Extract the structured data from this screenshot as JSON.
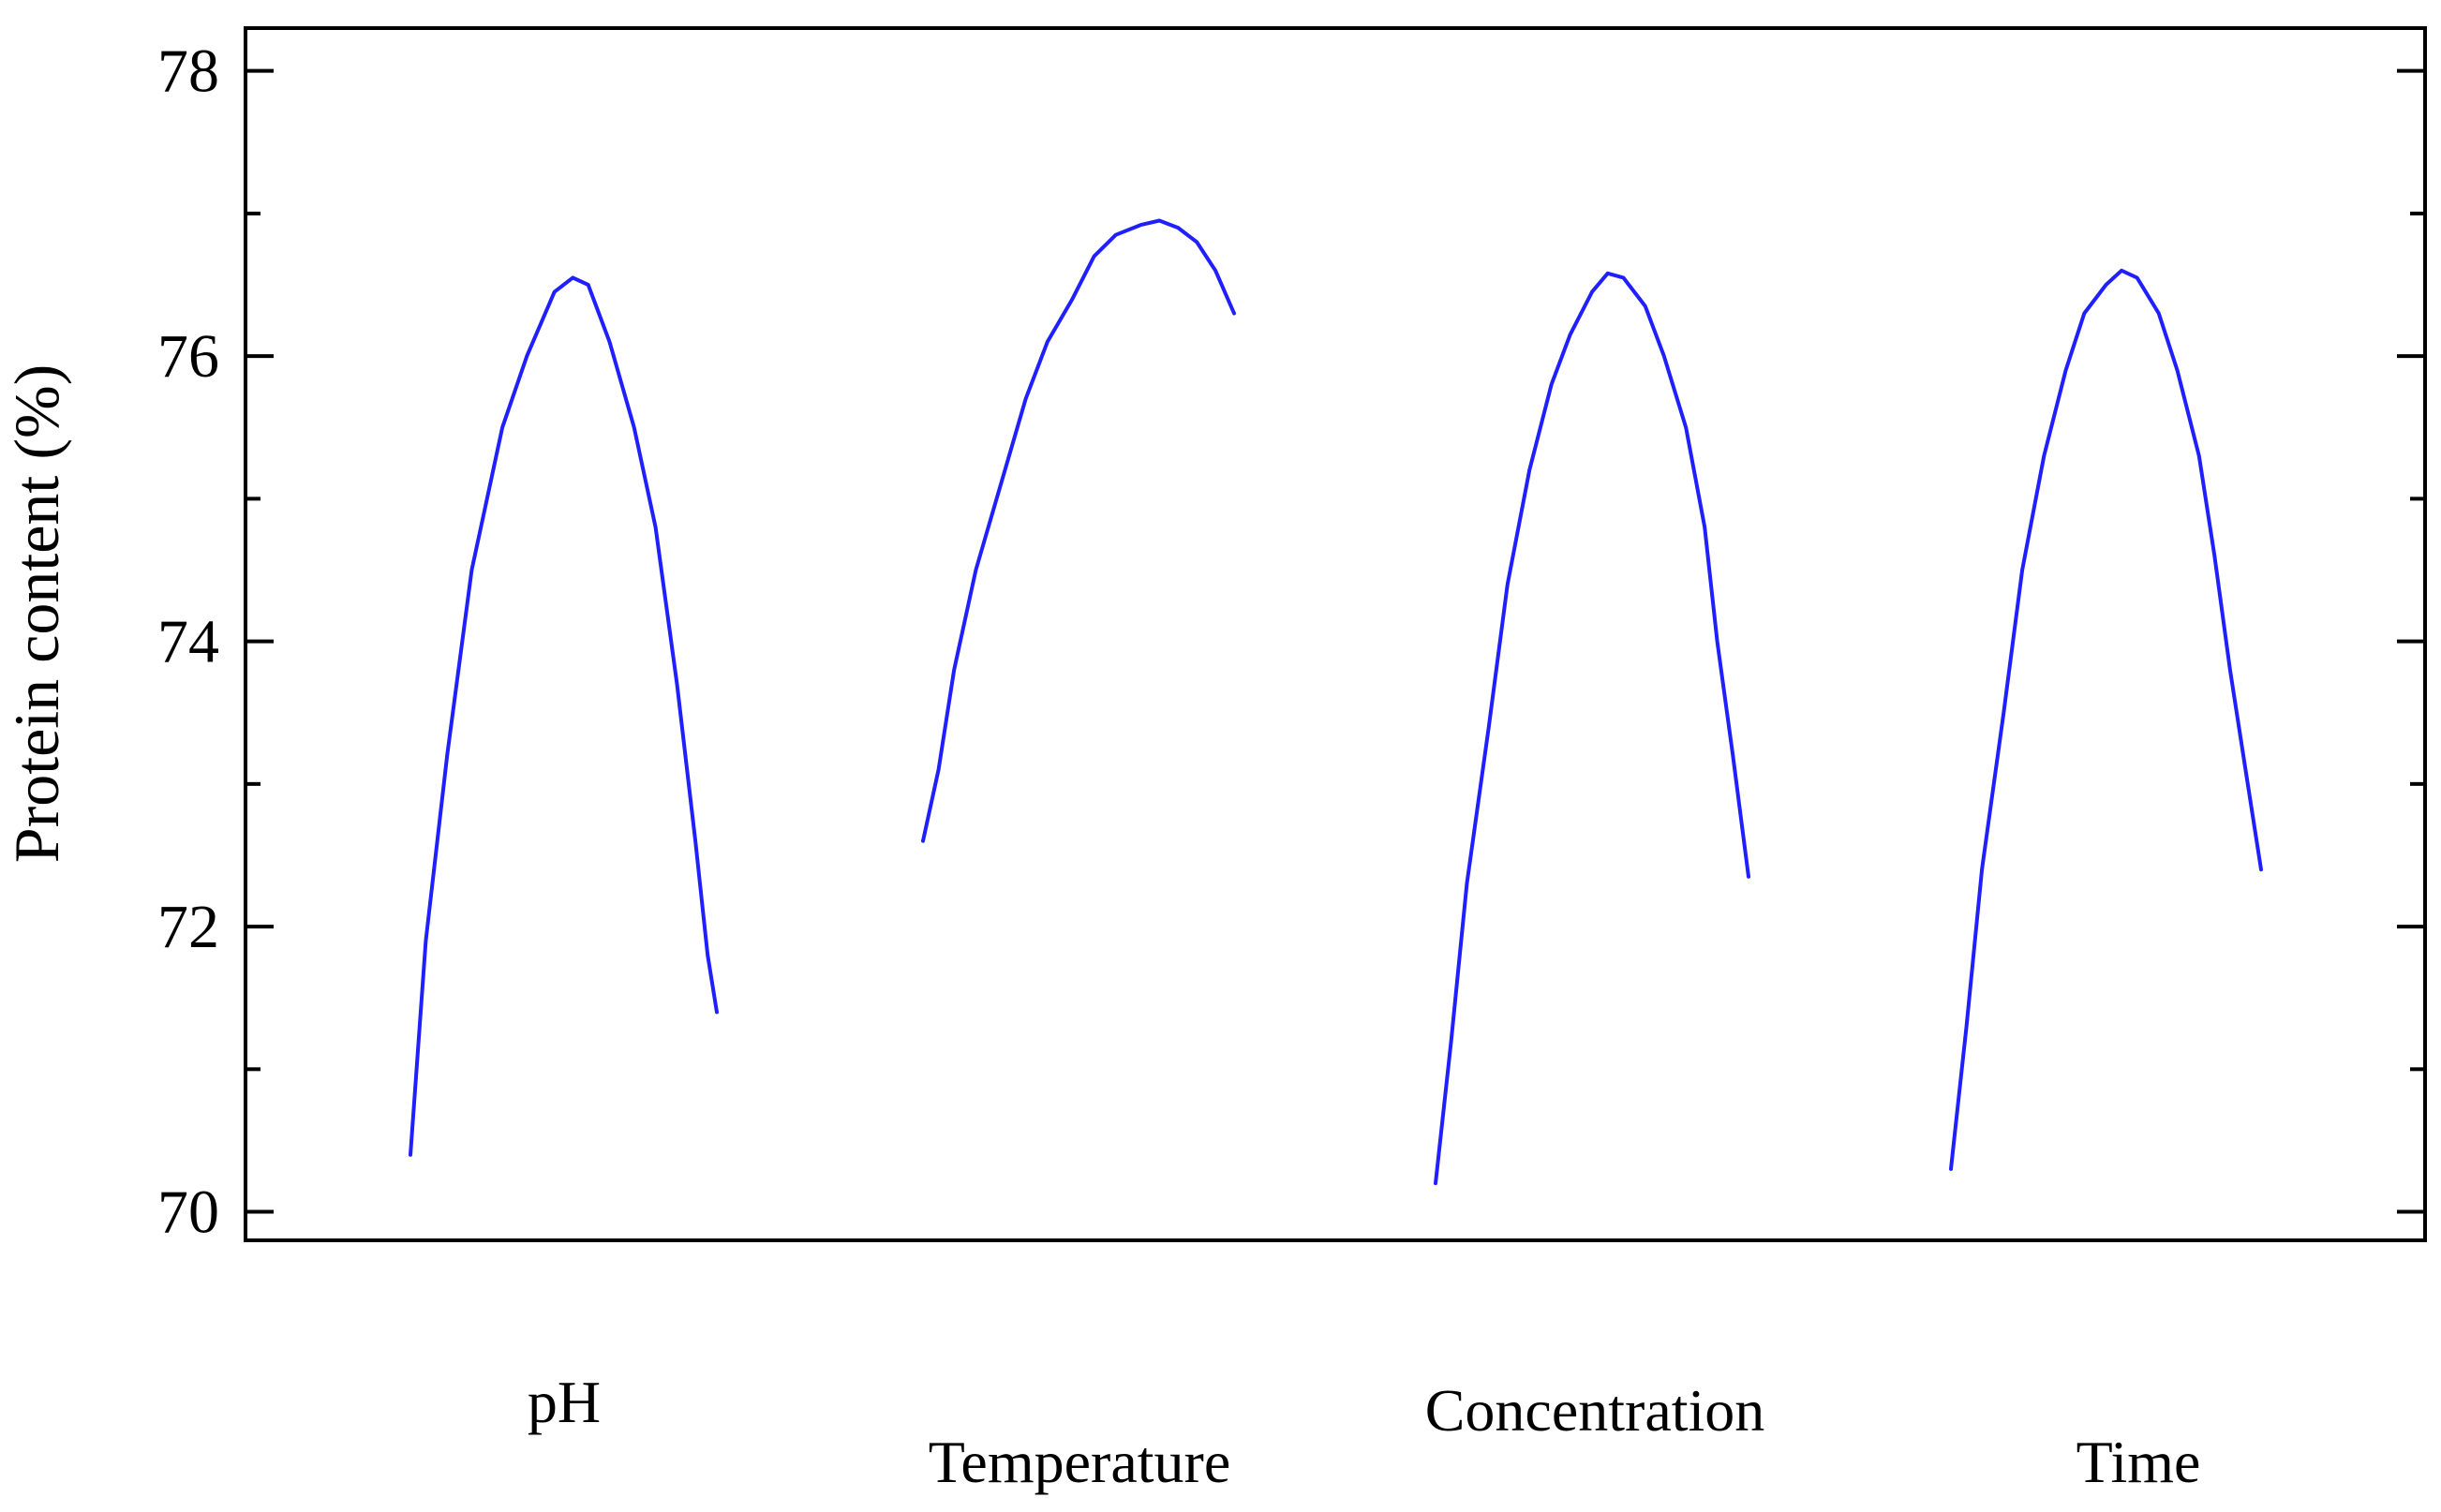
{
  "chart_data": {
    "type": "line",
    "title": "",
    "ylabel": "Protein content (%)",
    "xlabel": "",
    "ylim": [
      69.8,
      78.3
    ],
    "yticks_major": [
      70,
      72,
      74,
      76,
      78
    ],
    "yticks_labels": [
      "70",
      "72",
      "74",
      "76",
      "78"
    ],
    "yticks_minor": [
      71,
      73,
      75,
      77
    ],
    "grid": false,
    "line_color": "#1f1fff",
    "factors": [
      {
        "label": "pH",
        "points": [
          [
            0.0,
            70.4
          ],
          [
            0.05,
            71.9
          ],
          [
            0.12,
            73.2
          ],
          [
            0.2,
            74.5
          ],
          [
            0.3,
            75.5
          ],
          [
            0.38,
            76.0
          ],
          [
            0.47,
            76.45
          ],
          [
            0.53,
            76.55
          ],
          [
            0.58,
            76.5
          ],
          [
            0.65,
            76.1
          ],
          [
            0.73,
            75.5
          ],
          [
            0.8,
            74.8
          ],
          [
            0.87,
            73.7
          ],
          [
            0.93,
            72.6
          ],
          [
            0.97,
            71.8
          ],
          [
            1.0,
            71.4
          ]
        ]
      },
      {
        "label": "Temperature",
        "points": [
          [
            0.0,
            72.6
          ],
          [
            0.05,
            73.1
          ],
          [
            0.1,
            73.8
          ],
          [
            0.17,
            74.5
          ],
          [
            0.25,
            75.1
          ],
          [
            0.33,
            75.7
          ],
          [
            0.4,
            76.1
          ],
          [
            0.48,
            76.4
          ],
          [
            0.55,
            76.7
          ],
          [
            0.62,
            76.85
          ],
          [
            0.7,
            76.92
          ],
          [
            0.76,
            76.95
          ],
          [
            0.82,
            76.9
          ],
          [
            0.88,
            76.8
          ],
          [
            0.94,
            76.6
          ],
          [
            1.0,
            76.3
          ]
        ]
      },
      {
        "label": "Concentration",
        "points": [
          [
            0.0,
            70.2
          ],
          [
            0.05,
            71.2
          ],
          [
            0.1,
            72.3
          ],
          [
            0.17,
            73.4
          ],
          [
            0.23,
            74.4
          ],
          [
            0.3,
            75.2
          ],
          [
            0.37,
            75.8
          ],
          [
            0.43,
            76.15
          ],
          [
            0.5,
            76.45
          ],
          [
            0.55,
            76.58
          ],
          [
            0.6,
            76.55
          ],
          [
            0.67,
            76.35
          ],
          [
            0.73,
            76.0
          ],
          [
            0.8,
            75.5
          ],
          [
            0.86,
            74.8
          ],
          [
            0.9,
            74.0
          ],
          [
            0.95,
            73.2
          ],
          [
            1.0,
            72.35
          ]
        ]
      },
      {
        "label": "Time",
        "points": [
          [
            0.0,
            70.3
          ],
          [
            0.05,
            71.3
          ],
          [
            0.1,
            72.4
          ],
          [
            0.17,
            73.5
          ],
          [
            0.23,
            74.5
          ],
          [
            0.3,
            75.3
          ],
          [
            0.37,
            75.9
          ],
          [
            0.43,
            76.3
          ],
          [
            0.5,
            76.5
          ],
          [
            0.55,
            76.6
          ],
          [
            0.6,
            76.55
          ],
          [
            0.67,
            76.3
          ],
          [
            0.73,
            75.9
          ],
          [
            0.8,
            75.3
          ],
          [
            0.85,
            74.6
          ],
          [
            0.9,
            73.8
          ],
          [
            0.95,
            73.1
          ],
          [
            1.0,
            72.4
          ]
        ]
      }
    ]
  }
}
